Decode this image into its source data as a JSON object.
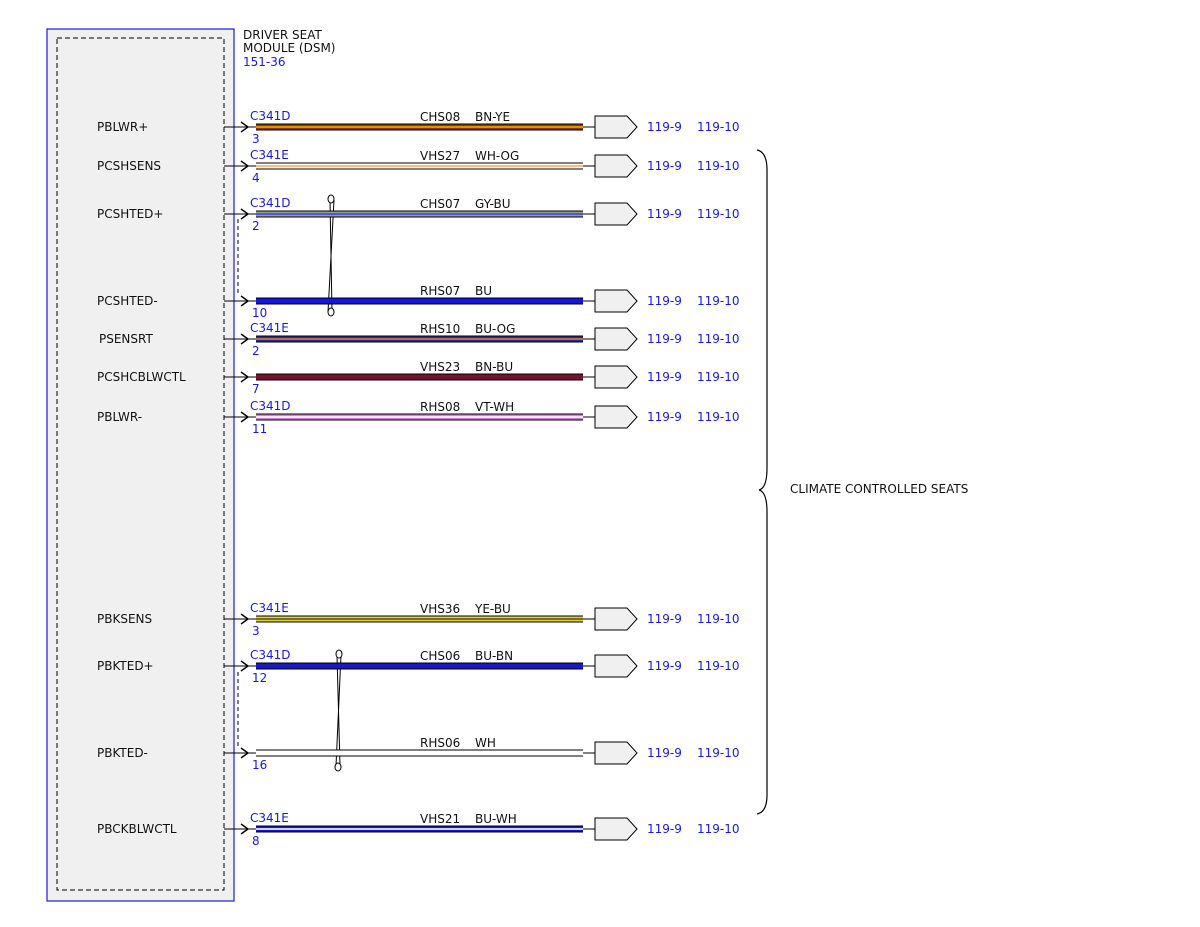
{
  "module": {
    "title_line1": "DRIVER SEAT",
    "title_line2": "MODULE (DSM)",
    "ref": "151-36"
  },
  "bracket_label": "CLIMATE CONTROLLED SEATS",
  "circuits": [
    {
      "pin_name": "PBLWR+",
      "connector": "C341D",
      "pin": "3",
      "circuit": "CHS08",
      "color_code": "BN-YE",
      "ref1": "119-9",
      "ref2": "119-10",
      "wire_colors": [
        "#8a3a10",
        "#e8b000"
      ]
    },
    {
      "pin_name": "PCSHSENS",
      "connector": "C341E",
      "pin": "4",
      "circuit": "VHS27",
      "color_code": "WH-OG",
      "ref1": "119-9",
      "ref2": "119-10",
      "wire_colors": [
        "#ffffff",
        "#f0b060"
      ]
    },
    {
      "pin_name": "PCSHTED+",
      "connector": "C341D",
      "pin": "2",
      "circuit": "CHS07",
      "color_code": "GY-BU",
      "ref1": "119-9",
      "ref2": "119-10",
      "wire_colors": [
        "#9a9a9a",
        "#3a4adc"
      ]
    },
    {
      "pin_name": "PCSHTED-",
      "connector": "",
      "pin": "10",
      "circuit": "RHS07",
      "color_code": "BU",
      "ref1": "119-9",
      "ref2": "119-10",
      "wire_colors": [
        "#1414e0",
        "#1414e0"
      ]
    },
    {
      "pin_name": "PSENSRT",
      "connector": "C341E",
      "pin": "2",
      "circuit": "RHS10",
      "color_code": "BU-OG",
      "ref1": "119-9",
      "ref2": "119-10",
      "wire_colors": [
        "#2a2aa0",
        "#d08040"
      ]
    },
    {
      "pin_name": "PCSHCBLWCTL",
      "connector": "",
      "pin": "7",
      "circuit": "VHS23",
      "color_code": "BN-BU",
      "ref1": "119-9",
      "ref2": "119-10",
      "wire_colors": [
        "#7a1030",
        "#7a1030"
      ]
    },
    {
      "pin_name": "PBLWR-",
      "connector": "C341D",
      "pin": "11",
      "circuit": "RHS08",
      "color_code": "VT-WH",
      "ref1": "119-9",
      "ref2": "119-10",
      "wire_colors": [
        "#d080d8",
        "#ffffff"
      ]
    },
    {
      "pin_name": "PBKSENS",
      "connector": "C341E",
      "pin": "3",
      "circuit": "VHS36",
      "color_code": "YE-BU",
      "ref1": "119-9",
      "ref2": "119-10",
      "wire_colors": [
        "#e0d040",
        "#5a5a20"
      ]
    },
    {
      "pin_name": "PBKTED+",
      "connector": "C341D",
      "pin": "12",
      "circuit": "CHS06",
      "color_code": "BU-BN",
      "ref1": "119-9",
      "ref2": "119-10",
      "wire_colors": [
        "#1818c8",
        "#1818c8"
      ]
    },
    {
      "pin_name": "PBKTED-",
      "connector": "",
      "pin": "16",
      "circuit": "RHS06",
      "color_code": "WH",
      "ref1": "119-9",
      "ref2": "119-10",
      "wire_colors": [
        "#ffffff",
        "#ffffff"
      ]
    },
    {
      "pin_name": "PBCKBLWCTL",
      "connector": "C341E",
      "pin": "8",
      "circuit": "VHS21",
      "color_code": "BU-WH",
      "ref1": "119-9",
      "ref2": "119-10",
      "wire_colors": [
        "#1818c8",
        "#ffffff"
      ]
    }
  ],
  "colors": {
    "module_border": "#1a1ad6",
    "module_fill": "#f0f0f0",
    "reference_text": "#1a1ad6",
    "line": "#000000"
  }
}
